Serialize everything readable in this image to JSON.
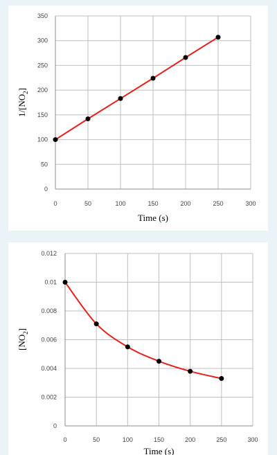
{
  "chart_data": [
    {
      "type": "line",
      "title": "",
      "xlabel": "Time (s)",
      "ylabel": "1/[NO2]",
      "ylabel_main": "1/[NO",
      "ylabel_sub": "2",
      "ylabel_close": "]",
      "xlim": [
        0,
        300
      ],
      "ylim": [
        0,
        350
      ],
      "xticks": [
        "0",
        "50",
        "100",
        "150",
        "200",
        "250",
        "300"
      ],
      "yticks": [
        "0",
        "50",
        "100",
        "150",
        "200",
        "250",
        "300",
        "350"
      ],
      "grid": true,
      "x": [
        0,
        50,
        100,
        150,
        200,
        250
      ],
      "values": [
        100,
        142,
        183,
        224,
        266,
        307
      ],
      "line_color": "#e8201c",
      "marker_color": "#000000",
      "curve": "straight"
    },
    {
      "type": "line",
      "title": "",
      "xlabel": "Time (s)",
      "ylabel": "[NO2]",
      "ylabel_main": "[NO",
      "ylabel_sub": "2",
      "ylabel_close": "]",
      "xlim": [
        0,
        300
      ],
      "ylim": [
        0,
        0.012
      ],
      "xticks": [
        "0",
        "50",
        "100",
        "150",
        "200",
        "250",
        "300"
      ],
      "yticks": [
        "0",
        "0.002",
        "0.004",
        "0.006",
        "0.008",
        "0.01",
        "0.012"
      ],
      "grid": true,
      "x": [
        0,
        50,
        100,
        150,
        200,
        250
      ],
      "values": [
        0.01,
        0.0071,
        0.0055,
        0.0045,
        0.0038,
        0.0033
      ],
      "line_color": "#e8201c",
      "marker_color": "#000000",
      "curve": "smooth"
    }
  ]
}
